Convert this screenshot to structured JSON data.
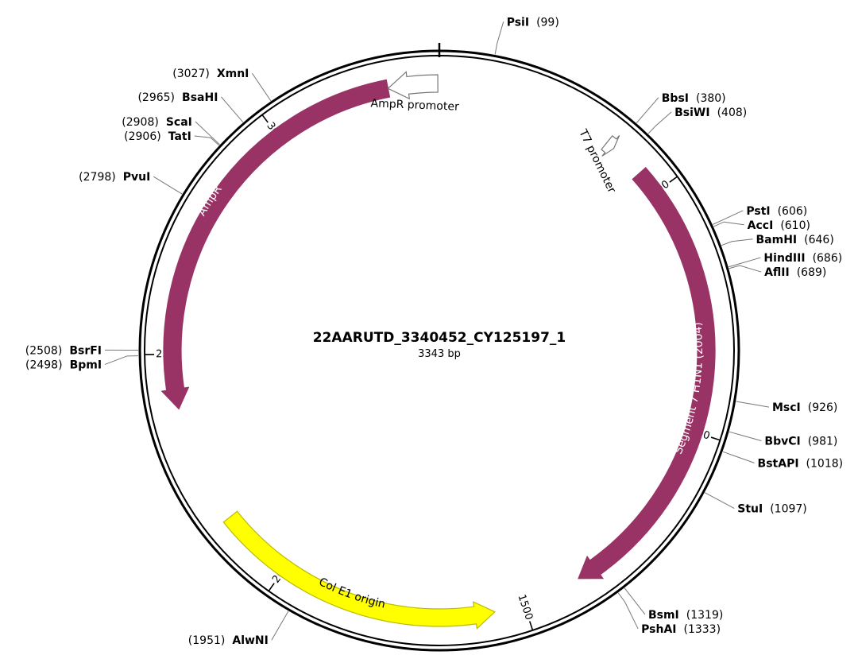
{
  "plasmid": {
    "name": "22AARUTD_3340452_CY125197_1",
    "length_label": "3343 bp",
    "length_bp": 3343
  },
  "ticks": [
    {
      "pos": 500,
      "label": "500"
    },
    {
      "pos": 1000,
      "label": "1000"
    },
    {
      "pos": 1500,
      "label": "1500"
    },
    {
      "pos": 2000,
      "label": "2000"
    },
    {
      "pos": 2500,
      "label": "2500"
    },
    {
      "pos": 3000,
      "label": "3000"
    }
  ],
  "features": [
    {
      "id": "t7-promoter",
      "name": "T7 promoter",
      "start": 361,
      "end": 379,
      "direction": 1,
      "color": "#ffffff",
      "outline": "#777777",
      "label_color": "#000000"
    },
    {
      "id": "segment7",
      "name": "Segment 7 H1N1 (2004)",
      "start": 450,
      "end": 1380,
      "direction": 1,
      "color": "#993366",
      "outline": "#993366",
      "label_color": "#ffffff"
    },
    {
      "id": "col-e1-origin",
      "name": "Col E1 origin",
      "start": 1560,
      "end": 2150,
      "direction": -1,
      "color": "#ffff00",
      "outline": "#bbbb00",
      "label_color": "#000000"
    },
    {
      "id": "ampr",
      "name": "AmpR",
      "start": 2390,
      "end": 3240,
      "direction": -1,
      "color": "#993366",
      "outline": "#993366",
      "label_color": "#ffffff"
    },
    {
      "id": "ampr-promoter",
      "name": "AmpR promoter",
      "start": 3240,
      "end": 3340,
      "direction": -1,
      "color": "#ffffff",
      "outline": "#777777",
      "label_color": "#000000"
    }
  ],
  "sites": [
    {
      "name": "PsiI",
      "pos_label": "(99)",
      "pos": 99,
      "side": "right"
    },
    {
      "name": "BbsI",
      "pos_label": "(380)",
      "pos": 380,
      "side": "right"
    },
    {
      "name": "BsiWI",
      "pos_label": "(408)",
      "pos": 408,
      "side": "right"
    },
    {
      "name": "PstI",
      "pos_label": "(606)",
      "pos": 606,
      "side": "right"
    },
    {
      "name": "AccI",
      "pos_label": "(610)",
      "pos": 610,
      "side": "right"
    },
    {
      "name": "BamHI",
      "pos_label": "(646)",
      "pos": 646,
      "side": "right"
    },
    {
      "name": "HindIII",
      "pos_label": "(686)",
      "pos": 686,
      "side": "right"
    },
    {
      "name": "AflII",
      "pos_label": "(689)",
      "pos": 689,
      "side": "right"
    },
    {
      "name": "MscI",
      "pos_label": "(926)",
      "pos": 926,
      "side": "right"
    },
    {
      "name": "BbvCI",
      "pos_label": "(981)",
      "pos": 981,
      "side": "right"
    },
    {
      "name": "BstAPI",
      "pos_label": "(1018)",
      "pos": 1018,
      "side": "right"
    },
    {
      "name": "StuI",
      "pos_label": "(1097)",
      "pos": 1097,
      "side": "right"
    },
    {
      "name": "BsmI",
      "pos_label": "(1319)",
      "pos": 1319,
      "side": "right"
    },
    {
      "name": "PshAI",
      "pos_label": "(1333)",
      "pos": 1333,
      "side": "right"
    },
    {
      "name": "AlwNI",
      "pos_label": "(1951)",
      "pos": 1951,
      "side": "left"
    },
    {
      "name": "BpmI",
      "pos_label": "(2498)",
      "pos": 2498,
      "side": "left"
    },
    {
      "name": "BsrFI",
      "pos_label": "(2508)",
      "pos": 2508,
      "side": "left"
    },
    {
      "name": "PvuI",
      "pos_label": "(2798)",
      "pos": 2798,
      "side": "left"
    },
    {
      "name": "TatI",
      "pos_label": "(2906)",
      "pos": 2906,
      "side": "left"
    },
    {
      "name": "ScaI",
      "pos_label": "(2908)",
      "pos": 2908,
      "side": "left"
    },
    {
      "name": "BsaHI",
      "pos_label": "(2965)",
      "pos": 2965,
      "side": "left"
    },
    {
      "name": "XmnI",
      "pos_label": "(3027)",
      "pos": 3027,
      "side": "left"
    }
  ]
}
